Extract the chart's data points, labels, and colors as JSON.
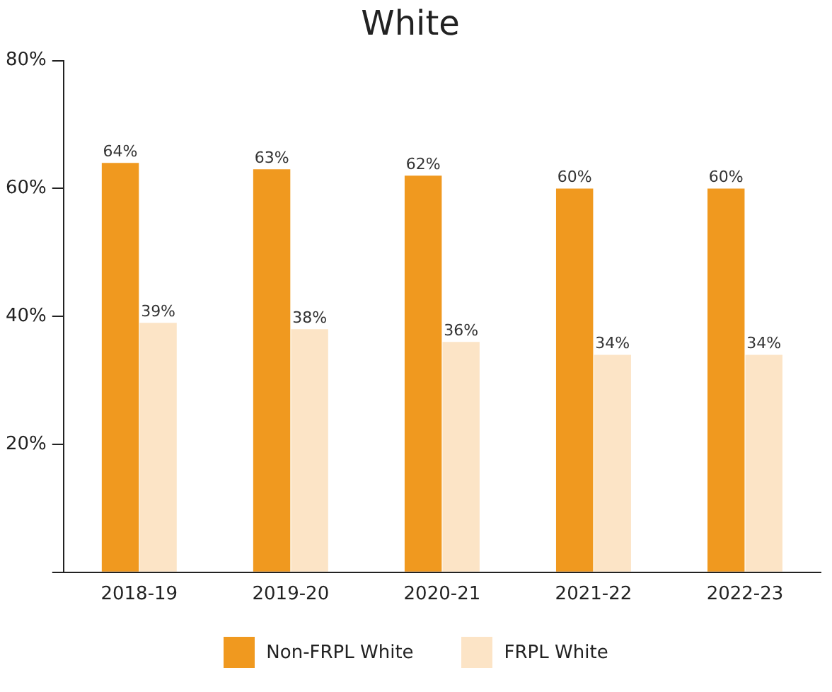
{
  "chart_data": {
    "type": "bar",
    "title": "White",
    "categories": [
      "2018-19",
      "2019-20",
      "2020-21",
      "2021-22",
      "2022-23"
    ],
    "series": [
      {
        "name": "Non-FRPL White",
        "color": "#f0991f",
        "values": [
          64,
          63,
          62,
          60,
          60
        ],
        "value_labels": [
          "64%",
          "63%",
          "62%",
          "60%",
          "60%"
        ]
      },
      {
        "name": "FRPL White",
        "color": "#fce4c6",
        "values": [
          39,
          38,
          36,
          34,
          34
        ],
        "value_labels": [
          "39%",
          "38%",
          "36%",
          "34%",
          "34%"
        ]
      }
    ],
    "ylim": [
      0,
      80
    ],
    "yticks": [
      {
        "value": 0,
        "label": null
      },
      {
        "value": 20,
        "label": "20%"
      },
      {
        "value": 40,
        "label": "40%"
      },
      {
        "value": 60,
        "label": "60%"
      },
      {
        "value": 80,
        "label": "80%"
      }
    ],
    "grid": false,
    "legend": "bottom"
  }
}
